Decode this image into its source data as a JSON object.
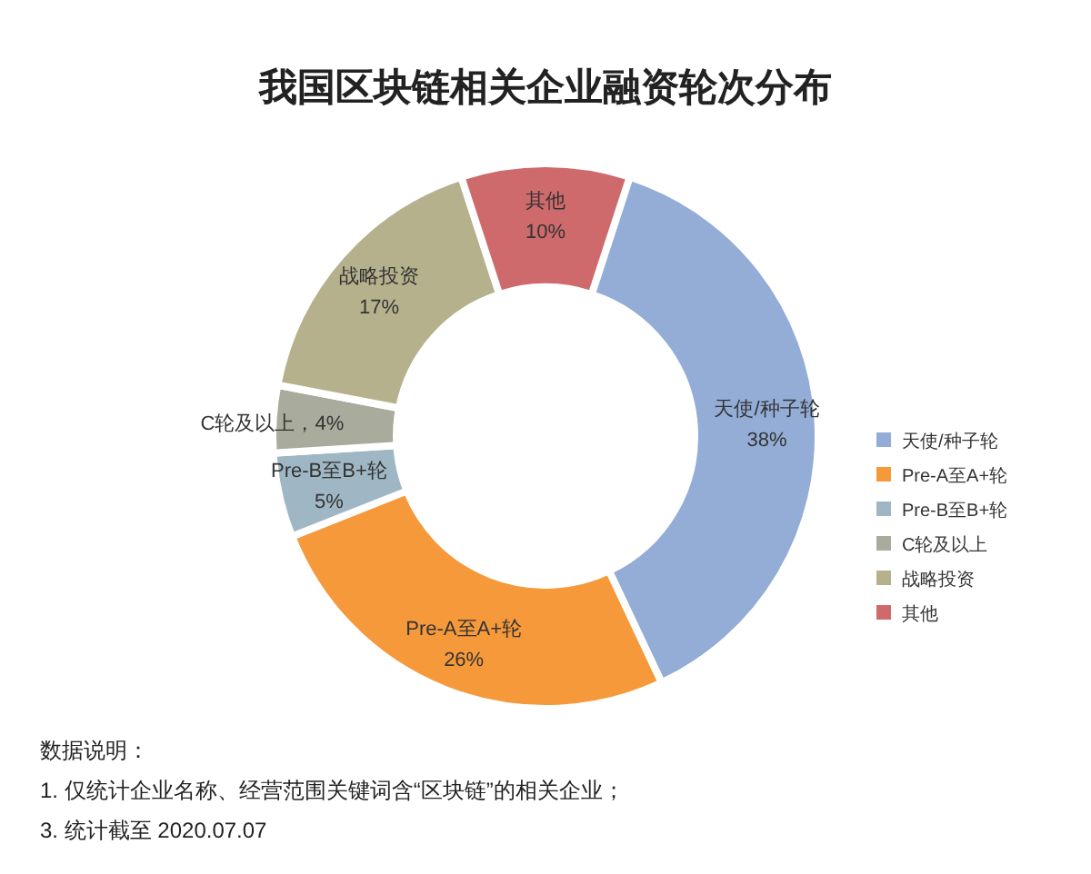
{
  "chart_data": {
    "type": "donut",
    "title": "我国区块链相关企业融资轮次分布",
    "categories": [
      "天使/种子轮",
      "Pre-A至A+轮",
      "Pre-B至B+轮",
      "C轮及以上",
      "战略投资",
      "其他"
    ],
    "values": [
      38,
      26,
      5,
      4,
      17,
      10
    ],
    "colors": [
      "#93add6",
      "#f5993a",
      "#9fb6c4",
      "#a9ab9c",
      "#b6b18d",
      "#cf6a6c"
    ],
    "value_labels": [
      "38%",
      "26%",
      "5%",
      "，4%",
      "17%",
      "10%"
    ],
    "legend": "right",
    "annotations": [
      "数据说明：",
      "1. 仅统计企业名称、经营范围关键词含“区块链”的相关企业；",
      "3. 统计截至 2020.07.07"
    ]
  }
}
